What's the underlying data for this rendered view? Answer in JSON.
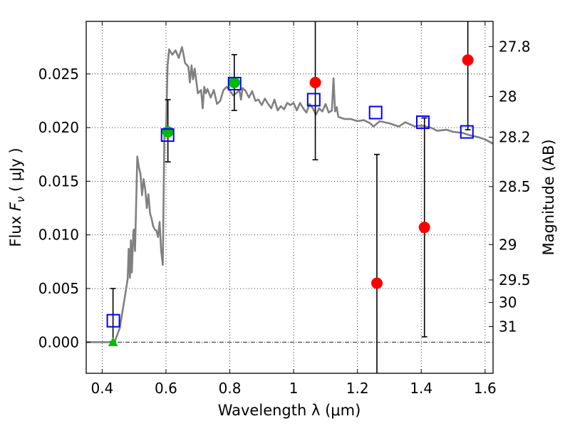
{
  "chart_data": {
    "type": "scatter",
    "xlabel": "Wavelength  λ (μm)",
    "ylabel": "Flux  F_ν  ( μJy )",
    "ylabel_parts": {
      "pre": "Flux  ",
      "F": "F",
      "nu": "ν",
      "post": "  ( μJy )"
    },
    "y2label": "Magnitude (AB)",
    "xlim": [
      0.35,
      1.625
    ],
    "ylim": [
      -0.0029,
      0.0299
    ],
    "grid": true,
    "x_ticks": [
      {
        "value": 0.4,
        "label": "0.4"
      },
      {
        "value": 0.6,
        "label": "0.6"
      },
      {
        "value": 0.8,
        "label": "0.8"
      },
      {
        "value": 1.0,
        "label": "1"
      },
      {
        "value": 1.2,
        "label": "1.2"
      },
      {
        "value": 1.4,
        "label": "1.4"
      },
      {
        "value": 1.6,
        "label": "1.6"
      }
    ],
    "y_ticks": [
      {
        "value": 0.0,
        "label": "0.000"
      },
      {
        "value": 0.005,
        "label": "0.005"
      },
      {
        "value": 0.01,
        "label": "0.010"
      },
      {
        "value": 0.015,
        "label": "0.015"
      },
      {
        "value": 0.02,
        "label": "0.020"
      },
      {
        "value": 0.025,
        "label": "0.025"
      }
    ],
    "y2_ticks": [
      {
        "label": "27.8",
        "flux": 0.02755
      },
      {
        "label": "28",
        "flux": 0.0229
      },
      {
        "label": "28.2",
        "flux": 0.0191
      },
      {
        "label": "28.5",
        "flux": 0.0145
      },
      {
        "label": "29",
        "flux": 0.0091
      },
      {
        "label": "29.5",
        "flux": 0.0058
      },
      {
        "label": "30",
        "flux": 0.0037
      },
      {
        "label": "31",
        "flux": 0.00145
      }
    ],
    "model_spectrum": {
      "name": "",
      "color": "#808080",
      "x": [
        0.35,
        0.42,
        0.44,
        0.455,
        0.47,
        0.48,
        0.483,
        0.487,
        0.49,
        0.493,
        0.498,
        0.5,
        0.503,
        0.51,
        0.515,
        0.52,
        0.525,
        0.53,
        0.535,
        0.54,
        0.545,
        0.55,
        0.555,
        0.56,
        0.565,
        0.57,
        0.575,
        0.58,
        0.585,
        0.59,
        0.595,
        0.6,
        0.605,
        0.61,
        0.615,
        0.62,
        0.63,
        0.64,
        0.65,
        0.655,
        0.66,
        0.67,
        0.675,
        0.68,
        0.685,
        0.69,
        0.7,
        0.71,
        0.715,
        0.72,
        0.725,
        0.73,
        0.74,
        0.75,
        0.76,
        0.77,
        0.78,
        0.79,
        0.8,
        0.81,
        0.82,
        0.83,
        0.835,
        0.84,
        0.85,
        0.86,
        0.87,
        0.88,
        0.89,
        0.9,
        0.91,
        0.92,
        0.93,
        0.94,
        0.95,
        0.96,
        0.97,
        0.98,
        0.99,
        1.0,
        1.01,
        1.02,
        1.03,
        1.04,
        1.05,
        1.06,
        1.07,
        1.08,
        1.09,
        1.1,
        1.11,
        1.12,
        1.125,
        1.13,
        1.135,
        1.14,
        1.16,
        1.18,
        1.2,
        1.22,
        1.24,
        1.25,
        1.27,
        1.3,
        1.33,
        1.35,
        1.38,
        1.4,
        1.43,
        1.45,
        1.48,
        1.5,
        1.53,
        1.55,
        1.58,
        1.6,
        1.625
      ],
      "y": [
        0.0,
        0.0,
        0.0001,
        0.0013,
        0.004,
        0.0059,
        0.0087,
        0.006,
        0.0095,
        0.0065,
        0.0104,
        0.0105,
        0.0085,
        0.0173,
        0.0163,
        0.0157,
        0.0137,
        0.0152,
        0.0142,
        0.0125,
        0.0138,
        0.012,
        0.0115,
        0.0108,
        0.0105,
        0.0104,
        0.0098,
        0.0112,
        0.0085,
        0.0072,
        0.0195,
        0.0195,
        0.0258,
        0.0273,
        0.027,
        0.0268,
        0.0272,
        0.0265,
        0.0275,
        0.0268,
        0.026,
        0.0257,
        0.0242,
        0.0258,
        0.0245,
        0.0255,
        0.0232,
        0.0235,
        0.0218,
        0.0238,
        0.0232,
        0.0236,
        0.0228,
        0.0235,
        0.0222,
        0.0225,
        0.0235,
        0.0238,
        0.0235,
        0.023,
        0.0232,
        0.0235,
        0.0226,
        0.0237,
        0.0234,
        0.0228,
        0.0234,
        0.0225,
        0.0226,
        0.0221,
        0.0227,
        0.0222,
        0.0218,
        0.0226,
        0.0216,
        0.022,
        0.0217,
        0.0223,
        0.0221,
        0.0223,
        0.0216,
        0.0223,
        0.0218,
        0.0214,
        0.0222,
        0.0218,
        0.0212,
        0.0218,
        0.0215,
        0.0222,
        0.0214,
        0.0216,
        0.0246,
        0.0215,
        0.0219,
        0.021,
        0.0208,
        0.0208,
        0.0206,
        0.0207,
        0.0204,
        0.0201,
        0.0206,
        0.0204,
        0.0201,
        0.0205,
        0.0201,
        0.0202,
        0.02,
        0.0197,
        0.0198,
        0.0196,
        0.0195,
        0.0193,
        0.0191,
        0.0189,
        0.0185
      ]
    },
    "model_photometry": {
      "name": "",
      "marker": "open-square",
      "color": "#0000ff",
      "x": [
        0.435,
        0.605,
        0.815,
        1.063,
        1.257,
        1.405,
        1.543
      ],
      "y": [
        0.002,
        0.0193,
        0.0241,
        0.0226,
        0.0214,
        0.0205,
        0.0196
      ]
    },
    "detections": {
      "name": "",
      "marker": "filled-circle",
      "color": "#00bb00",
      "x": [
        0.606,
        0.814
      ],
      "y": [
        0.0196,
        0.0242
      ],
      "err_low": [
        0.0168,
        0.0216
      ],
      "err_high": [
        0.0226,
        0.0268
      ]
    },
    "low_significance": {
      "name": "",
      "marker": "filled-circle",
      "color": "#ff0000",
      "x": [
        1.068,
        1.261,
        1.41,
        1.546
      ],
      "y": [
        0.0242,
        0.0055,
        0.0107,
        0.0263
      ],
      "err_low": [
        0.017,
        -0.0029,
        0.0005,
        0.0198
      ],
      "err_high": [
        0.0299,
        0.0175,
        0.0209,
        0.0299
      ]
    },
    "upper_limit": {
      "name": "",
      "marker": "filled-triangle",
      "color": "#00bb00",
      "x": [
        0.434
      ],
      "y": [
        0.0
      ],
      "err_low": [
        0.0
      ],
      "err_high": [
        0.005
      ]
    }
  }
}
